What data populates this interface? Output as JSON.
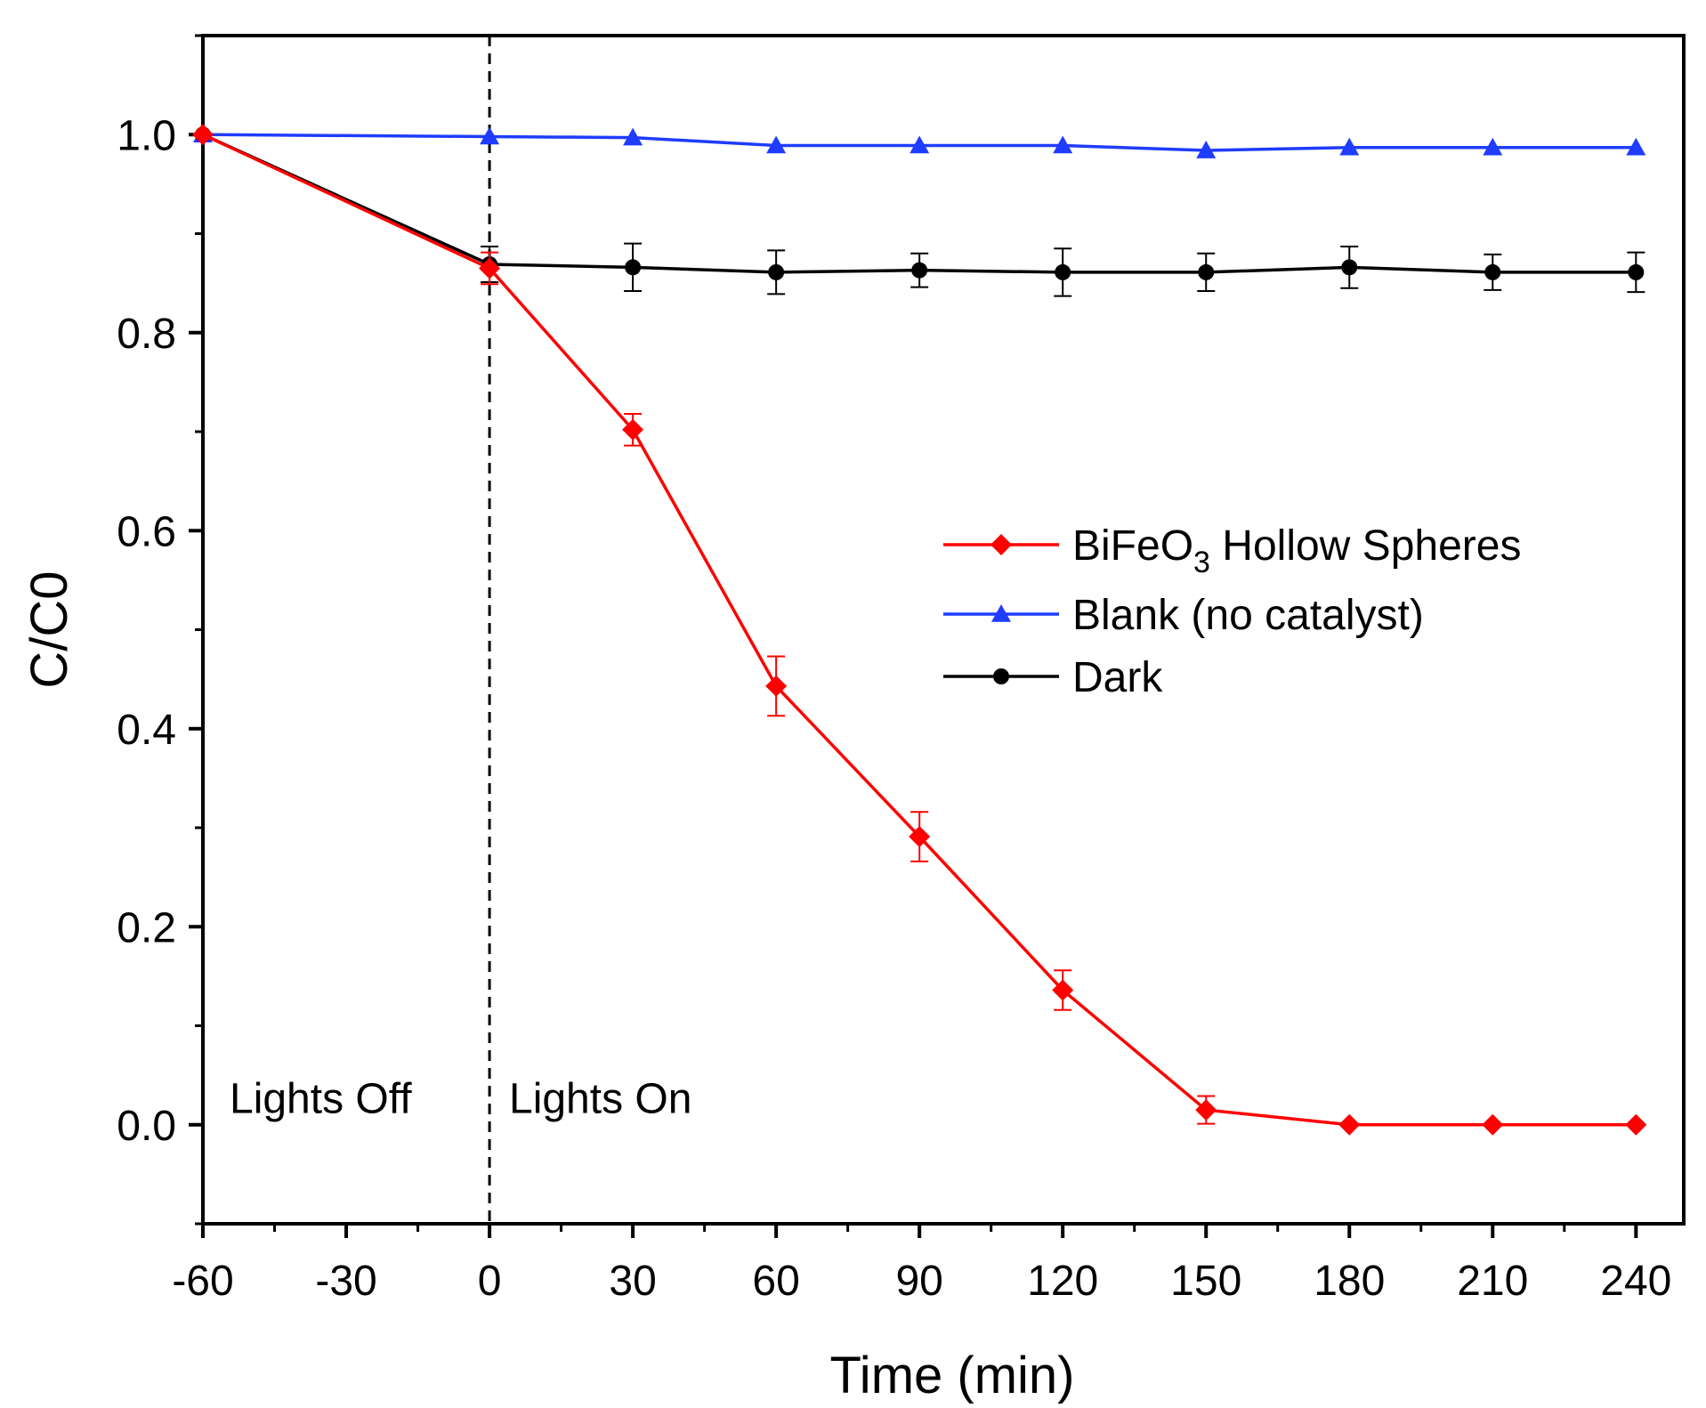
{
  "chart_data": {
    "type": "line",
    "title": "",
    "xlabel": "Time (min)",
    "ylabel": "C/C0",
    "xlim": [
      -60,
      250
    ],
    "ylim": [
      -0.1,
      1.1
    ],
    "x_ticks": [
      -60,
      -30,
      0,
      30,
      60,
      90,
      120,
      150,
      180,
      210,
      240
    ],
    "y_ticks": [
      0.0,
      0.2,
      0.4,
      0.6,
      0.8,
      1.0
    ],
    "y_tick_labels": [
      "0.0",
      "0.2",
      "0.4",
      "0.6",
      "0.8",
      "1.0"
    ],
    "legend_position": "center-right",
    "grid": false,
    "series": [
      {
        "name": "BiFeO3 Hollow Spheres",
        "legend_main": "BiFeO",
        "legend_sub": "3",
        "legend_rest": " Hollow Spheres",
        "color": "#ff0000",
        "marker": "diamond",
        "x": [
          -60,
          0,
          30,
          60,
          90,
          120,
          150,
          180,
          210,
          240
        ],
        "y": [
          1.0,
          0.865,
          0.702,
          0.443,
          0.291,
          0.136,
          0.015,
          0.0,
          0.0,
          0.0
        ],
        "err": [
          0,
          0.016,
          0.016,
          0.03,
          0.025,
          0.02,
          0.014,
          0,
          0,
          0
        ]
      },
      {
        "name": "Blank (no catalyst)",
        "color": "#1f3cff",
        "marker": "triangle",
        "x": [
          -60,
          0,
          30,
          60,
          90,
          120,
          150,
          180,
          210,
          240
        ],
        "y": [
          1.0,
          0.998,
          0.997,
          0.989,
          0.989,
          0.989,
          0.984,
          0.987,
          0.987,
          0.987
        ],
        "err": [
          0,
          0,
          0,
          0,
          0,
          0,
          0,
          0,
          0,
          0
        ]
      },
      {
        "name": "Dark",
        "color": "#000000",
        "marker": "circle",
        "x": [
          -60,
          0,
          30,
          60,
          90,
          120,
          150,
          180,
          210,
          240
        ],
        "y": [
          1.0,
          0.869,
          0.866,
          0.861,
          0.863,
          0.861,
          0.861,
          0.866,
          0.861,
          0.861
        ],
        "err": [
          0,
          0.018,
          0.024,
          0.022,
          0.017,
          0.024,
          0.019,
          0.021,
          0.018,
          0.02
        ]
      }
    ],
    "reference_line": {
      "x": 0,
      "style": "dashed"
    },
    "annotations": [
      {
        "text": "Lights Off",
        "color": "#000000"
      },
      {
        "text": "Lights On",
        "color": "#1a8a1a"
      }
    ]
  }
}
